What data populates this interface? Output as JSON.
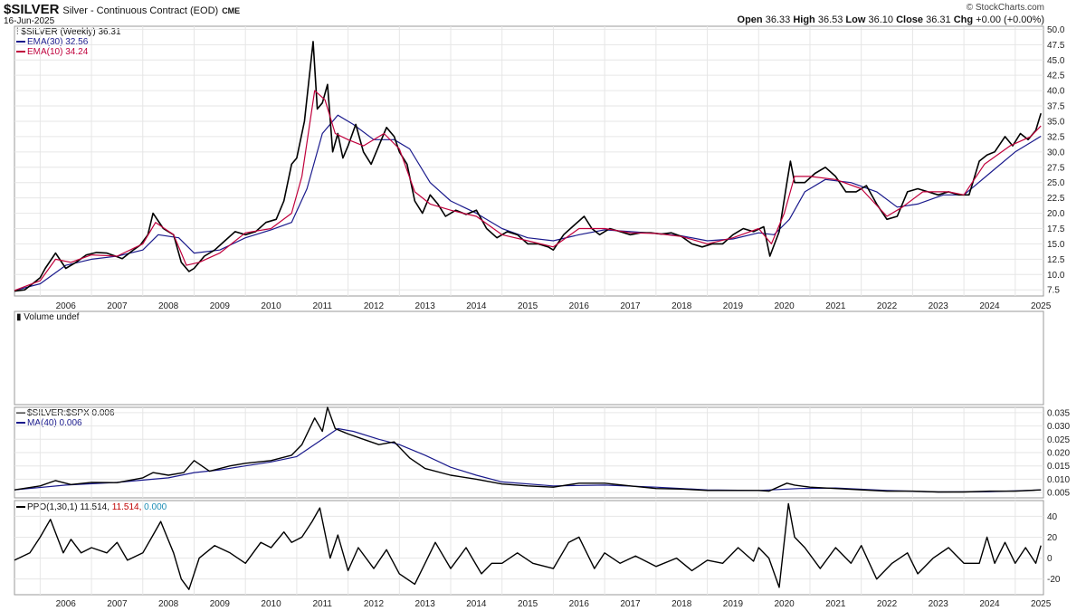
{
  "header": {
    "symbol": "$SILVER",
    "description": "Silver - Continuous Contract (EOD)",
    "exchange": "CME",
    "date": "16-Jun-2025",
    "brand": "© StockCharts.com",
    "open_label": "Open",
    "open": "36.33",
    "high_label": "High",
    "high": "36.53",
    "low_label": "Low",
    "low": "36.10",
    "close_label": "Close",
    "close": "36.31",
    "chg_label": "Chg",
    "chg": "+0.00 (+0.00%)"
  },
  "colors": {
    "price": "#000000",
    "ema30": "#1a1a8c",
    "ema10": "#c0003c",
    "ma40": "#1a1a8c",
    "ppo_signal": "#c00000",
    "ppo_hist": "#1a8cb4",
    "grid": "#e6e6e6",
    "border": "#999999"
  },
  "chart_data": [
    {
      "type": "line",
      "panel": "price",
      "legend": {
        "price_label": "$SILVER (Weekly) 36.31",
        "ema30_label": "EMA(30) 32.56",
        "ema10_label": "EMA(10) 34.24"
      },
      "x_ticks": [
        "2006",
        "2007",
        "2008",
        "2009",
        "2010",
        "2011",
        "2012",
        "2013",
        "2014",
        "2015",
        "2016",
        "2017",
        "2018",
        "2019",
        "2020",
        "2021",
        "2022",
        "2023",
        "2024",
        "2025"
      ],
      "y_ticks": [
        7.5,
        10.0,
        12.5,
        15.0,
        17.5,
        20.0,
        22.5,
        25.0,
        27.5,
        30.0,
        32.5,
        35.0,
        37.5,
        40.0,
        42.5,
        45.0,
        47.5,
        50.0
      ],
      "y_tick_labels": [
        "7.5",
        "10.0",
        "12.5",
        "15.0",
        "17.5",
        "20.0",
        "22.5",
        "25.0",
        "27.5",
        "30.0",
        "32.5",
        "35.0",
        "37.5",
        "40.0",
        "42.5",
        "45.0",
        "47.5",
        "50.0"
      ],
      "ylim": [
        6.5,
        50.5
      ],
      "xlim": [
        2005.5,
        2025.55
      ],
      "grid": true,
      "series": [
        {
          "key": "price",
          "x": [
            2005.5,
            2005.7,
            2005.9,
            2006.0,
            2006.1,
            2006.3,
            2006.5,
            2006.7,
            2006.9,
            2007.1,
            2007.3,
            2007.6,
            2007.8,
            2007.95,
            2008.1,
            2008.2,
            2008.4,
            2008.6,
            2008.75,
            2008.9,
            2009.0,
            2009.2,
            2009.4,
            2009.6,
            2009.8,
            2010.0,
            2010.2,
            2010.4,
            2010.6,
            2010.75,
            2010.9,
            2011.0,
            2011.15,
            2011.32,
            2011.4,
            2011.5,
            2011.6,
            2011.7,
            2011.8,
            2011.9,
            2012.0,
            2012.15,
            2012.3,
            2012.45,
            2012.6,
            2012.75,
            2012.9,
            2013.0,
            2013.15,
            2013.3,
            2013.45,
            2013.6,
            2013.75,
            2013.9,
            2014.1,
            2014.3,
            2014.5,
            2014.7,
            2014.9,
            2015.1,
            2015.3,
            2015.5,
            2015.7,
            2015.9,
            2016.0,
            2016.2,
            2016.4,
            2016.6,
            2016.75,
            2016.9,
            2017.1,
            2017.3,
            2017.5,
            2017.7,
            2017.9,
            2018.1,
            2018.3,
            2018.5,
            2018.7,
            2018.9,
            2019.1,
            2019.3,
            2019.5,
            2019.7,
            2019.9,
            2020.1,
            2020.22,
            2020.4,
            2020.55,
            2020.62,
            2020.7,
            2020.9,
            2021.1,
            2021.3,
            2021.5,
            2021.7,
            2021.9,
            2022.1,
            2022.3,
            2022.5,
            2022.7,
            2022.9,
            2023.1,
            2023.3,
            2023.5,
            2023.7,
            2023.9,
            2024.1,
            2024.3,
            2024.45,
            2024.6,
            2024.8,
            2024.95,
            2025.1,
            2025.25,
            2025.4,
            2025.5
          ],
          "y": [
            7.3,
            7.5,
            8.8,
            9.5,
            11.0,
            13.5,
            11.0,
            12.0,
            13.2,
            13.6,
            13.5,
            12.6,
            13.9,
            14.8,
            16.5,
            20.0,
            17.5,
            16.5,
            12.0,
            10.5,
            11.0,
            13.0,
            14.0,
            15.5,
            17.0,
            16.5,
            17.0,
            18.5,
            19.0,
            22.0,
            28.0,
            29.0,
            35.0,
            48.0,
            37.0,
            38.0,
            41.0,
            30.0,
            33.0,
            29.0,
            31.0,
            34.5,
            30.0,
            28.0,
            31.0,
            34.0,
            32.5,
            30.0,
            28.0,
            22.0,
            20.0,
            23.0,
            21.5,
            19.5,
            20.5,
            19.8,
            20.5,
            17.5,
            16.0,
            17.0,
            16.5,
            15.0,
            15.0,
            14.5,
            14.0,
            16.5,
            18.0,
            19.5,
            17.5,
            16.5,
            17.5,
            17.0,
            16.5,
            16.8,
            16.8,
            16.6,
            16.8,
            16.2,
            15.0,
            14.5,
            15.0,
            15.0,
            16.5,
            17.5,
            17.0,
            17.8,
            13.0,
            17.0,
            25.0,
            28.5,
            25.0,
            25.0,
            26.5,
            27.5,
            26.0,
            23.5,
            23.5,
            24.5,
            21.5,
            19.0,
            19.5,
            23.5,
            24.0,
            23.5,
            23.0,
            23.5,
            23.0,
            23.0,
            28.5,
            29.5,
            30.0,
            32.5,
            31.0,
            33.0,
            32.0,
            33.5,
            36.3
          ]
        },
        {
          "key": "ema10",
          "x": [
            2005.5,
            2006.0,
            2006.3,
            2006.6,
            2007.0,
            2007.5,
            2008.0,
            2008.25,
            2008.6,
            2008.85,
            2009.1,
            2009.5,
            2010.0,
            2010.5,
            2010.9,
            2011.1,
            2011.35,
            2011.55,
            2011.75,
            2012.0,
            2012.3,
            2012.7,
            2013.0,
            2013.3,
            2013.6,
            2014.0,
            2014.5,
            2015.0,
            2015.5,
            2016.0,
            2016.5,
            2017.0,
            2017.5,
            2018.0,
            2018.5,
            2019.0,
            2019.5,
            2020.0,
            2020.25,
            2020.5,
            2020.7,
            2021.0,
            2021.5,
            2022.0,
            2022.5,
            2022.8,
            2023.2,
            2023.7,
            2024.0,
            2024.4,
            2024.9,
            2025.3,
            2025.5
          ],
          "y": [
            7.4,
            9.0,
            12.5,
            12.0,
            13.2,
            13.0,
            15.0,
            18.5,
            16.5,
            11.5,
            12.0,
            13.5,
            16.8,
            17.5,
            20.0,
            26.0,
            40.0,
            38.5,
            33.0,
            32.0,
            31.0,
            33.0,
            30.5,
            23.5,
            21.5,
            20.5,
            19.5,
            16.5,
            15.5,
            14.5,
            17.5,
            17.5,
            16.8,
            16.7,
            16.2,
            15.0,
            16.0,
            17.5,
            15.0,
            20.0,
            26.0,
            26.0,
            25.5,
            24.0,
            19.5,
            21.0,
            23.5,
            23.5,
            23.0,
            28.0,
            31.0,
            32.5,
            34.24
          ]
        },
        {
          "key": "ema30",
          "x": [
            2005.5,
            2006.0,
            2006.5,
            2007.0,
            2007.5,
            2008.0,
            2008.3,
            2008.7,
            2009.0,
            2009.5,
            2010.0,
            2010.5,
            2010.9,
            2011.2,
            2011.5,
            2011.8,
            2012.1,
            2012.5,
            2012.9,
            2013.2,
            2013.6,
            2014.0,
            2014.5,
            2015.0,
            2015.5,
            2016.0,
            2016.5,
            2017.0,
            2017.5,
            2018.0,
            2018.5,
            2019.0,
            2019.5,
            2020.0,
            2020.3,
            2020.6,
            2020.9,
            2021.3,
            2021.8,
            2022.3,
            2022.7,
            2023.1,
            2023.6,
            2024.0,
            2024.5,
            2025.0,
            2025.5
          ],
          "y": [
            7.4,
            8.5,
            11.5,
            12.5,
            13.0,
            14.0,
            16.5,
            16.0,
            13.5,
            14.0,
            16.0,
            17.3,
            18.5,
            24.0,
            33.0,
            36.0,
            34.5,
            32.0,
            32.0,
            30.5,
            25.0,
            22.0,
            20.0,
            17.5,
            16.0,
            15.5,
            16.5,
            17.3,
            17.0,
            16.7,
            16.3,
            15.5,
            15.8,
            16.8,
            16.5,
            19.0,
            23.5,
            25.5,
            25.0,
            23.5,
            21.0,
            21.5,
            23.0,
            23.0,
            26.5,
            30.0,
            32.56
          ]
        }
      ]
    },
    {
      "type": "bar",
      "panel": "volume",
      "legend_label": "Volume undef",
      "values": []
    },
    {
      "type": "line",
      "panel": "ratio",
      "legend": {
        "ratio_label": "$SILVER:$SPX 0.006",
        "ma_label": "MA(40) 0.006"
      },
      "y_ticks": [
        0.005,
        0.01,
        0.015,
        0.02,
        0.025,
        0.03,
        0.035
      ],
      "y_tick_labels": [
        "0.005",
        "0.010",
        "0.015",
        "0.020",
        "0.025",
        "0.030",
        "0.035"
      ],
      "ylim": [
        0.003,
        0.037
      ],
      "series": [
        {
          "key": "ratio",
          "x": [
            2005.5,
            2006.0,
            2006.3,
            2006.6,
            2007.0,
            2007.5,
            2008.0,
            2008.2,
            2008.5,
            2008.8,
            2009.0,
            2009.3,
            2009.7,
            2010.0,
            2010.5,
            2010.9,
            2011.1,
            2011.35,
            2011.5,
            2011.6,
            2011.75,
            2012.0,
            2012.3,
            2012.6,
            2012.9,
            2013.2,
            2013.5,
            2014.0,
            2014.5,
            2015.0,
            2015.5,
            2016.0,
            2016.5,
            2017.0,
            2017.5,
            2018.0,
            2018.5,
            2019.0,
            2019.5,
            2020.0,
            2020.2,
            2020.55,
            2020.7,
            2021.0,
            2021.5,
            2022.0,
            2022.5,
            2023.0,
            2023.5,
            2024.0,
            2024.5,
            2025.0,
            2025.5
          ],
          "y": [
            0.006,
            0.0075,
            0.0095,
            0.008,
            0.0088,
            0.0087,
            0.0105,
            0.0125,
            0.0115,
            0.0125,
            0.017,
            0.013,
            0.015,
            0.016,
            0.017,
            0.019,
            0.023,
            0.033,
            0.028,
            0.037,
            0.029,
            0.027,
            0.025,
            0.023,
            0.024,
            0.018,
            0.014,
            0.0115,
            0.01,
            0.0082,
            0.0075,
            0.007,
            0.0085,
            0.0085,
            0.0075,
            0.0065,
            0.0063,
            0.0058,
            0.0058,
            0.0058,
            0.0055,
            0.0085,
            0.0078,
            0.007,
            0.0065,
            0.006,
            0.0055,
            0.0055,
            0.0052,
            0.0052,
            0.0055,
            0.0055,
            0.006
          ]
        },
        {
          "key": "ma40",
          "x": [
            2005.5,
            2006.5,
            2007.5,
            2008.5,
            2009.0,
            2009.5,
            2010.0,
            2010.5,
            2011.0,
            2011.5,
            2011.8,
            2012.1,
            2012.6,
            2013.0,
            2013.5,
            2014.0,
            2014.5,
            2015.0,
            2016.0,
            2017.0,
            2018.0,
            2019.0,
            2020.0,
            2020.8,
            2021.5,
            2022.5,
            2023.5,
            2024.5,
            2025.5
          ],
          "y": [
            0.006,
            0.0078,
            0.0088,
            0.0105,
            0.0125,
            0.0135,
            0.015,
            0.0165,
            0.0185,
            0.025,
            0.029,
            0.028,
            0.025,
            0.023,
            0.019,
            0.0145,
            0.0115,
            0.009,
            0.0075,
            0.0078,
            0.007,
            0.006,
            0.0058,
            0.0065,
            0.0067,
            0.0058,
            0.0052,
            0.0053,
            0.006
          ]
        }
      ]
    },
    {
      "type": "line",
      "panel": "ppo",
      "legend": {
        "ppo_label": "PPO(1,30,1) 11.514,",
        "signal_label": "11.514,",
        "hist_label": "0.000"
      },
      "y_ticks": [
        -20,
        0,
        20,
        40
      ],
      "y_tick_labels": [
        "-20",
        "0",
        "20",
        "40"
      ],
      "ylim": [
        -35,
        55
      ],
      "series": [
        {
          "key": "ppo",
          "x": [
            2005.5,
            2005.8,
            2006.0,
            2006.2,
            2006.45,
            2006.6,
            2006.8,
            2007.0,
            2007.3,
            2007.5,
            2007.7,
            2008.0,
            2008.2,
            2008.35,
            2008.6,
            2008.75,
            2008.9,
            2009.1,
            2009.4,
            2009.7,
            2010.0,
            2010.3,
            2010.5,
            2010.75,
            2010.9,
            2011.1,
            2011.3,
            2011.45,
            2011.65,
            2011.8,
            2012.0,
            2012.2,
            2012.5,
            2012.75,
            2013.0,
            2013.3,
            2013.5,
            2013.7,
            2014.0,
            2014.3,
            2014.6,
            2014.8,
            2015.0,
            2015.3,
            2015.6,
            2016.0,
            2016.3,
            2016.5,
            2016.8,
            2017.0,
            2017.3,
            2017.6,
            2018.0,
            2018.4,
            2018.7,
            2019.0,
            2019.3,
            2019.6,
            2019.9,
            2020.0,
            2020.2,
            2020.4,
            2020.58,
            2020.7,
            2020.9,
            2021.2,
            2021.5,
            2021.8,
            2022.0,
            2022.3,
            2022.6,
            2022.9,
            2023.1,
            2023.4,
            2023.7,
            2024.0,
            2024.3,
            2024.45,
            2024.6,
            2024.8,
            2025.0,
            2025.2,
            2025.4,
            2025.5
          ],
          "y": [
            -2,
            5,
            20,
            37,
            5,
            18,
            5,
            10,
            5,
            15,
            -2,
            5,
            22,
            35,
            5,
            -20,
            -30,
            0,
            12,
            5,
            -5,
            15,
            10,
            25,
            15,
            20,
            35,
            48,
            0,
            22,
            -12,
            10,
            -10,
            8,
            -15,
            -25,
            -5,
            15,
            -10,
            10,
            -15,
            -5,
            -5,
            5,
            -5,
            -10,
            15,
            20,
            -10,
            5,
            -5,
            2,
            -8,
            0,
            -12,
            -2,
            -5,
            10,
            -3,
            10,
            0,
            -28,
            52,
            20,
            10,
            -10,
            10,
            -5,
            12,
            -20,
            -5,
            5,
            -15,
            0,
            10,
            -5,
            -5,
            20,
            -5,
            15,
            -5,
            10,
            -5,
            12
          ]
        }
      ]
    }
  ]
}
